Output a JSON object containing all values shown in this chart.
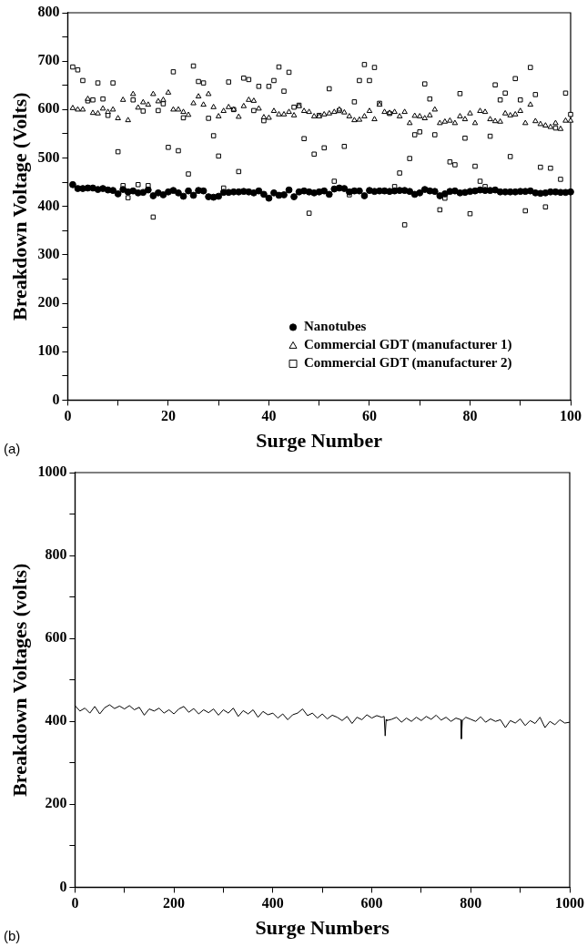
{
  "chart_data": [
    {
      "type": "scatter",
      "xlabel": "Surge Number",
      "ylabel": "Breakdown Voltage (Volts)",
      "annotations": [
        "(a)"
      ],
      "x": [
        1,
        2,
        3,
        4,
        5,
        6,
        7,
        8,
        9,
        10,
        11,
        12,
        13,
        14,
        15,
        16,
        17,
        18,
        19,
        20,
        21,
        22,
        23,
        24,
        25,
        26,
        27,
        28,
        29,
        30,
        31,
        32,
        33,
        34,
        35,
        36,
        37,
        38,
        39,
        40,
        41,
        42,
        43,
        44,
        45,
        46,
        47,
        48,
        49,
        50,
        51,
        52,
        53,
        54,
        55,
        56,
        57,
        58,
        59,
        60,
        61,
        62,
        63,
        64,
        65,
        66,
        67,
        68,
        69,
        70,
        71,
        72,
        73,
        74,
        75,
        76,
        77,
        78,
        79,
        80,
        81,
        82,
        83,
        84,
        85,
        86,
        87,
        88,
        89,
        90,
        91,
        92,
        93,
        94,
        95,
        96,
        97,
        98,
        99,
        100
      ],
      "xlim": [
        0,
        100
      ],
      "xticks": [
        0,
        {
          "value": 10,
          "label": null
        },
        20,
        {
          "value": 30,
          "label": null
        },
        40,
        {
          "value": 50,
          "label": null
        },
        60,
        {
          "value": 70,
          "label": null
        },
        80,
        {
          "value": 90,
          "label": null
        },
        100
      ],
      "ylim": [
        0,
        800
      ],
      "yticks": [
        0,
        {
          "value": 50,
          "label": null
        },
        100,
        {
          "value": 150,
          "label": null
        },
        200,
        {
          "value": 250,
          "label": null
        },
        300,
        {
          "value": 350,
          "label": null
        },
        400,
        {
          "value": 450,
          "label": null
        },
        500,
        {
          "value": 550,
          "label": null
        },
        600,
        {
          "value": 650,
          "label": null
        },
        700,
        {
          "value": 750,
          "label": null
        },
        800
      ],
      "legend": "bottom right",
      "series": [
        {
          "name": "Nanotubes",
          "color": "#000000",
          "marker": "circle",
          "values": [
            445,
            437,
            437,
            438,
            438,
            435,
            437,
            434,
            433,
            426,
            435,
            430,
            432,
            428,
            429,
            434,
            422,
            428,
            424,
            430,
            433,
            428,
            421,
            432,
            423,
            433,
            432,
            420,
            419,
            421,
            429,
            429,
            430,
            430,
            431,
            430,
            428,
            432,
            425,
            417,
            428,
            423,
            424,
            434,
            420,
            430,
            432,
            430,
            428,
            430,
            432,
            425,
            436,
            438,
            437,
            430,
            432,
            432,
            422,
            433,
            431,
            432,
            432,
            431,
            432,
            433,
            433,
            431,
            425,
            428,
            435,
            432,
            431,
            422,
            426,
            431,
            432,
            428,
            429,
            431,
            432,
            434,
            433,
            433,
            434,
            430,
            430,
            430,
            430,
            431,
            431,
            432,
            428,
            427,
            428,
            430,
            430,
            429,
            429,
            430
          ]
        },
        {
          "name": "Commercial GDT (manufacturer 1)",
          "color": "#000000",
          "marker": "triangle",
          "values": [
            603,
            600,
            600,
            622,
            593,
            592,
            602,
            595,
            600,
            582,
            620,
            578,
            632,
            604,
            615,
            610,
            632,
            617,
            620,
            635,
            600,
            600,
            595,
            589,
            613,
            627,
            610,
            632,
            605,
            586,
            597,
            605,
            600,
            585,
            607,
            620,
            618,
            602,
            584,
            583,
            597,
            590,
            590,
            595,
            588,
            607,
            597,
            595,
            586,
            586,
            590,
            592,
            595,
            600,
            594,
            586,
            578,
            579,
            586,
            597,
            580,
            610,
            595,
            593,
            595,
            586,
            595,
            572,
            587,
            586,
            582,
            588,
            600,
            572,
            575,
            577,
            572,
            586,
            580,
            592,
            572,
            597,
            595,
            580,
            576,
            575,
            592,
            588,
            590,
            597,
            572,
            610,
            576,
            570,
            567,
            564,
            572,
            560,
            577,
            577
          ]
        },
        {
          "name": "Commercial GDT (manufacturer 2)",
          "color": "#000000",
          "marker": "square",
          "values": [
            688,
            682,
            660,
            618,
            620,
            655,
            622,
            588,
            655,
            513,
            443,
            418,
            620,
            445,
            597,
            443,
            378,
            598,
            612,
            522,
            678,
            515,
            583,
            467,
            690,
            658,
            655,
            582,
            546,
            504,
            438,
            657,
            600,
            472,
            665,
            662,
            598,
            648,
            577,
            648,
            660,
            688,
            638,
            677,
            605,
            609,
            540,
            386,
            508,
            588,
            521,
            643,
            452,
            598,
            524,
            424,
            616,
            660,
            693,
            660,
            687,
            613,
            432,
            592,
            441,
            469,
            362,
            499,
            548,
            554,
            653,
            622,
            548,
            393,
            417,
            492,
            486,
            633,
            541,
            385,
            483,
            452,
            441,
            545,
            651,
            620,
            634,
            503,
            664,
            620,
            391,
            687,
            631,
            481,
            399,
            479,
            562,
            456,
            634,
            590
          ]
        }
      ]
    },
    {
      "type": "line",
      "xlabel": "Surge Numbers",
      "ylabel": "Breakdown Voltages (volts)",
      "annotations": [
        "(b)"
      ],
      "x": [
        0,
        10,
        20,
        30,
        40,
        50,
        60,
        70,
        80,
        90,
        100,
        110,
        120,
        130,
        140,
        150,
        160,
        170,
        180,
        190,
        200,
        210,
        220,
        230,
        240,
        250,
        260,
        270,
        280,
        290,
        300,
        310,
        320,
        330,
        340,
        350,
        360,
        370,
        380,
        390,
        400,
        410,
        420,
        430,
        440,
        450,
        460,
        470,
        480,
        490,
        500,
        510,
        520,
        530,
        540,
        550,
        560,
        570,
        580,
        590,
        600,
        610,
        620,
        625,
        627,
        629,
        630,
        640,
        650,
        660,
        670,
        680,
        690,
        700,
        710,
        720,
        730,
        740,
        750,
        760,
        770,
        780,
        781,
        783,
        790,
        800,
        810,
        820,
        830,
        840,
        850,
        860,
        870,
        880,
        890,
        900,
        910,
        920,
        930,
        940,
        950,
        960,
        970,
        980,
        990,
        1000
      ],
      "xlim": [
        0,
        1000
      ],
      "xticks": [
        0,
        {
          "value": 100,
          "label": null
        },
        200,
        {
          "value": 300,
          "label": null
        },
        400,
        {
          "value": 500,
          "label": null
        },
        600,
        {
          "value": 700,
          "label": null
        },
        800,
        {
          "value": 900,
          "label": null
        },
        1000
      ],
      "ylim": [
        0,
        1000
      ],
      "yticks": [
        0,
        {
          "value": 100,
          "label": null
        },
        200,
        {
          "value": 300,
          "label": null
        },
        400,
        {
          "value": 500,
          "label": null
        },
        600,
        {
          "value": 700,
          "label": null
        },
        800,
        {
          "value": 900,
          "label": null
        },
        1000
      ],
      "marker": "none",
      "line_style": "solid",
      "series": [
        {
          "color": "#000000",
          "values": [
            438,
            425,
            432,
            420,
            436,
            418,
            433,
            440,
            431,
            437,
            430,
            438,
            428,
            434,
            415,
            430,
            425,
            432,
            420,
            428,
            418,
            430,
            436,
            422,
            431,
            418,
            428,
            421,
            430,
            415,
            428,
            420,
            432,
            412,
            426,
            418,
            428,
            410,
            424,
            416,
            420,
            408,
            418,
            404,
            416,
            420,
            430,
            414,
            420,
            408,
            418,
            406,
            415,
            410,
            402,
            412,
            395,
            410,
            404,
            416,
            408,
            414,
            410,
            412,
            365,
            405,
            402,
            405,
            410,
            398,
            408,
            400,
            410,
            402,
            412,
            405,
            415,
            403,
            410,
            400,
            408,
            404,
            358,
            402,
            410,
            405,
            400,
            411,
            398,
            406,
            400,
            404,
            385,
            402,
            396,
            406,
            390,
            402,
            395,
            410,
            385,
            400,
            392,
            404,
            396,
            398
          ]
        }
      ]
    }
  ]
}
